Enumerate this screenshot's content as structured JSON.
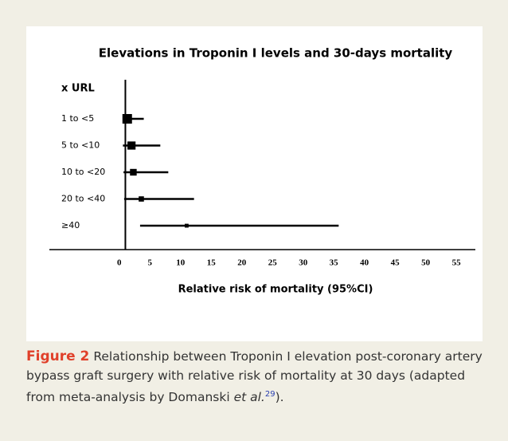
{
  "chart_data": {
    "type": "forest",
    "title": "Elevations in Troponin I levels and 30-days mortality",
    "category_header": "x URL",
    "categories": [
      "1 to <5",
      "5 to <10",
      "10 to <20",
      "20 to <40",
      "≥40"
    ],
    "values": [
      1.3,
      2.0,
      2.3,
      3.6,
      11.0
    ],
    "lower": [
      0.6,
      0.6,
      0.7,
      0.8,
      3.4
    ],
    "upper": [
      4.0,
      6.7,
      8.0,
      12.2,
      35.8
    ],
    "reference_line": 1,
    "color": "#000000",
    "xlabel": "Relative risk of mortality (95%CI)",
    "xlim": [
      -11.4,
      58.1
    ],
    "xticks": [
      0,
      5,
      10,
      15,
      20,
      25,
      30,
      35,
      40,
      45,
      50,
      55
    ]
  },
  "caption": {
    "label": "Figure 2",
    "text": "Relationship between Troponin I elevation post-coronary artery bypass graft surgery with relative risk of mortality at 30 days (adapted from meta-analysis by Domanski ",
    "italic": "et al.",
    "ref": "29",
    "end": ")."
  }
}
